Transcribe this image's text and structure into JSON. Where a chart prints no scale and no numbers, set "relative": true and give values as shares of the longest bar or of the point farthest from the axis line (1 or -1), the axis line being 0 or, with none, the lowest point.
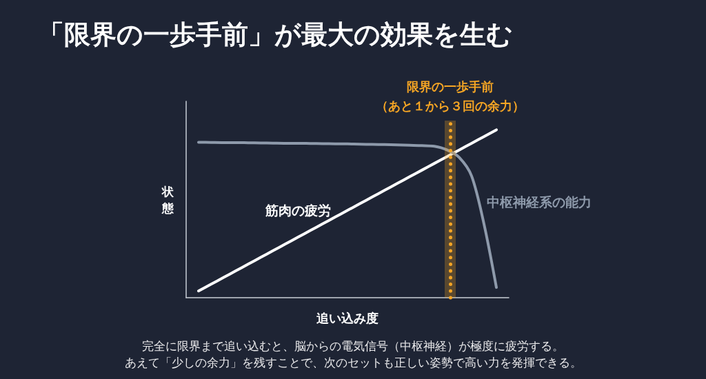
{
  "chart_data": {
    "type": "line",
    "title": "「限界の一歩手前」が最大の効果を生む",
    "xlabel": "追い込み度",
    "ylabel": "状態",
    "relative": true,
    "marker": "none",
    "categories": [
      null,
      null,
      null,
      null,
      null,
      null,
      null,
      null,
      null,
      null,
      null,
      null,
      null,
      null,
      null,
      null,
      null,
      null,
      null,
      null,
      null,
      null,
      null,
      null,
      null,
      null,
      null
    ],
    "series": [
      {
        "name": "筋肉の疲労",
        "color": "#ffffff",
        "values": [
          null,
          0.04,
          0.08,
          0.12,
          0.16,
          0.2,
          0.24,
          0.28,
          0.32,
          0.36,
          0.4,
          0.44,
          0.48,
          0.52,
          0.56,
          0.6,
          0.64,
          0.68,
          0.72,
          0.76,
          0.8,
          0.84,
          0.88,
          0.92,
          0.96,
          1.0,
          null
        ]
      },
      {
        "name": "中枢神経系の能力",
        "color": "#8e9aab",
        "values": [
          null,
          0.926,
          0.925,
          0.924,
          0.924,
          0.923,
          0.922,
          0.921,
          0.92,
          0.92,
          0.919,
          0.918,
          0.917,
          0.916,
          0.914,
          0.913,
          0.912,
          0.91,
          0.908,
          0.906,
          0.902,
          0.881,
          0.836,
          0.725,
          0.439,
          0.061,
          null
        ]
      }
    ],
    "annotations": [
      "限界の一歩手前",
      "（あと１から３回の余力）",
      "完全に限界まで追い込むと、脳からの電気信号（中枢神経）が極度に疲労する。",
      "あえて「少しの余力」を残すことで、次のセットも正しい姿勢で高い力を発揮できる。"
    ]
  }
}
